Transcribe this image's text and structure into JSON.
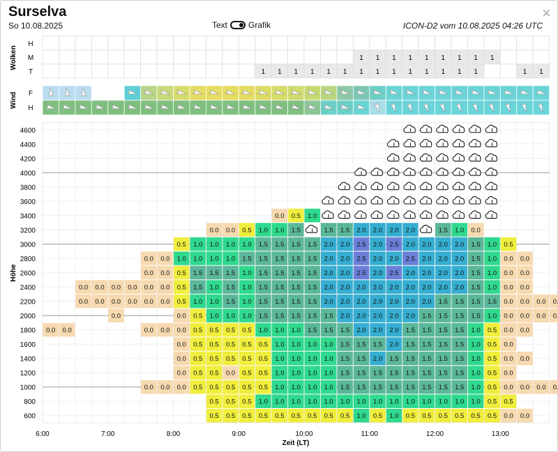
{
  "header": {
    "title": "Surselva",
    "date": "So 10.08.2025",
    "toggle_left": "Text",
    "toggle_right": "Grafik",
    "model": "ICON-D2 vom 10.08.2025 04:26 UTC",
    "close": "×"
  },
  "clouds": {
    "section_label": "Wolken",
    "rows": [
      "H",
      "M",
      "T"
    ],
    "M": [
      null,
      null,
      null,
      null,
      null,
      null,
      null,
      null,
      null,
      null,
      null,
      null,
      null,
      null,
      null,
      null,
      null,
      null,
      null,
      "1",
      "1",
      "1",
      "1",
      "1",
      "1",
      "1",
      "1",
      "1",
      null,
      null,
      null,
      "1"
    ],
    "T": [
      null,
      null,
      null,
      null,
      null,
      null,
      null,
      null,
      null,
      null,
      null,
      null,
      null,
      "1",
      "1",
      "1",
      "1",
      "1",
      "1",
      "1",
      "1",
      "1",
      "1",
      "1",
      "1",
      "1",
      "1",
      null,
      null,
      "1",
      "1",
      "1",
      "1",
      "2"
    ]
  },
  "wind": {
    "section_label": "Wind",
    "rows": [
      "F",
      "H"
    ],
    "F_colors": [
      "#b9dcef",
      "#b9dcef",
      "#b9dcef",
      "#ffffff",
      "#ffffff",
      "#5fcfd6",
      "#b8d588",
      "#c8d97a",
      "#d6dc6b",
      "#e2dc63",
      "#e6dc60",
      "#e6dc60",
      "#e4dc62",
      "#dcdc66",
      "#d5dc6a",
      "#cedb6e",
      "#c6da74",
      "#b9d780",
      "#8dc8a8",
      "#7cc7b4",
      "#6ccfc6",
      "#6ad4d4",
      "#6ad4d8",
      "#6ad4d8",
      "#6ad4d8",
      "#6ad4d8",
      "#6ad4d8",
      "#6ad4d8",
      "#6ad4d8",
      "#6ad4d8",
      "#6ad4d8",
      "#8fd8e4",
      "#a8dce9",
      "#a8dce9",
      "#a8dce9",
      "#a8dce9",
      "#a8dce9"
    ],
    "H_colors": [
      "#7fbf7f",
      "#7fbf7f",
      "#7fbf7f",
      "#7fbf7f",
      "#7fbf7f",
      "#7fbf7f",
      "#7fbf7f",
      "#7fbf7f",
      "#7fbf7f",
      "#7fbf7f",
      "#7fbf7f",
      "#7fbf7f",
      "#7fbf7f",
      "#7fbf7f",
      "#7fbf7f",
      "#7fbf7f",
      "#8cc697",
      "#6ccfc6",
      "#6ccfc6",
      "#6ad4d4",
      "#a8dce9",
      "#6ad4d8",
      "#6ad4d8",
      "#6ad4d8",
      "#6ad4d8",
      "#6ad4d8",
      "#6ad4d8",
      "#6ad4d8",
      "#6ad4d8",
      "#6ad4d8",
      "#6ad4d8",
      "#a8dce9",
      "#a8dce9",
      "#a8dce9",
      "#a8dce9",
      "#a8dce9",
      "#a8dce9"
    ]
  },
  "chart_data": {
    "type": "heatmap",
    "title": "Thermik",
    "ylabel": "Höhe",
    "xlabel": "Zeit (LT)",
    "y_ticks": [
      4600,
      4400,
      4200,
      4000,
      3800,
      3600,
      3400,
      3200,
      3000,
      2800,
      2600,
      2400,
      2200,
      2000,
      1800,
      1600,
      1400,
      1200,
      1000,
      800,
      600
    ],
    "x_ticks": [
      "6:00",
      "7:00",
      "8:00",
      "9:00",
      "10:00",
      "11:00",
      "12:00",
      "13:00",
      "14:00",
      "15:00",
      "16:00",
      "17:00",
      "18:00",
      "19:00",
      "20:00",
      "21:00"
    ],
    "x_start_hour": 6.0,
    "step_hours": 0.25,
    "rows": [
      {
        "alt": 4600,
        "cells": [
          "",
          "",
          "",
          "",
          "",
          "",
          "",
          "",
          "",
          "",
          "",
          "",
          "",
          "",
          "",
          "",
          "",
          "",
          "",
          "",
          "",
          "",
          "C",
          "C",
          "C",
          "C",
          "C",
          "C"
        ]
      },
      {
        "alt": 4400,
        "cells": [
          "",
          "",
          "",
          "",
          "",
          "",
          "",
          "",
          "",
          "",
          "",
          "",
          "",
          "",
          "",
          "",
          "",
          "",
          "",
          "",
          "",
          "C",
          "C",
          "C",
          "C",
          "C",
          "C",
          "C"
        ]
      },
      {
        "alt": 4200,
        "cells": [
          "",
          "",
          "",
          "",
          "",
          "",
          "",
          "",
          "",
          "",
          "",
          "",
          "",
          "",
          "",
          "",
          "",
          "",
          "",
          "",
          "",
          "C",
          "C",
          "C",
          "C",
          "C",
          "C",
          "C"
        ]
      },
      {
        "alt": 4000,
        "cells": [
          "",
          "",
          "",
          "",
          "",
          "",
          "",
          "",
          "",
          "",
          "",
          "",
          "",
          "",
          "",
          "",
          "",
          "",
          "",
          "C",
          "C",
          "C",
          "C",
          "C",
          "C",
          "C",
          "C",
          "C"
        ]
      },
      {
        "alt": 3800,
        "cells": [
          "",
          "",
          "",
          "",
          "",
          "",
          "",
          "",
          "",
          "",
          "",
          "",
          "",
          "",
          "",
          "",
          "",
          "",
          "C",
          "C",
          "C",
          "C",
          "C",
          "C",
          "C",
          "C",
          "C",
          "C"
        ]
      },
      {
        "alt": 3600,
        "cells": [
          "",
          "",
          "",
          "",
          "",
          "",
          "",
          "",
          "",
          "",
          "",
          "",
          "",
          "",
          "",
          "",
          "",
          "C",
          "C",
          "C",
          "C",
          "C",
          "C",
          "C",
          "C",
          "C",
          "C",
          "C"
        ]
      },
      {
        "alt": 3400,
        "cells": [
          "",
          "",
          "",
          "",
          "",
          "",
          "",
          "",
          "",
          "",
          "",
          "",
          "",
          "",
          "0.0",
          "0.5",
          "1.0",
          "C",
          "C",
          "C",
          "C",
          "C",
          "C",
          "C",
          "C",
          "C",
          "C",
          "C"
        ]
      },
      {
        "alt": 3200,
        "cells": [
          "",
          "",
          "",
          "",
          "",
          "",
          "",
          "",
          "",
          "",
          "0.0",
          "0.0",
          "0.5",
          "1.0",
          "1.0",
          "1.5",
          "C",
          "1.5",
          "1.5",
          "2.0",
          "2.0",
          "2.0",
          "2.0",
          "C",
          "1.5",
          "1.0",
          "0.0",
          ""
        ]
      },
      {
        "alt": 3000,
        "cells": [
          "",
          "",
          "",
          "",
          "",
          "",
          "",
          "",
          "0.5",
          "1.0",
          "1.0",
          "1.0",
          "1.0",
          "1.5",
          "1.5",
          "1.5",
          "1.5",
          "2.0",
          "2.0",
          "2.5",
          "2.0",
          "2.5",
          "2.0",
          "2.0",
          "2.0",
          "2.0",
          "1.5",
          "1.0",
          "0.5"
        ]
      },
      {
        "alt": 2800,
        "cells": [
          "",
          "",
          "",
          "",
          "",
          "",
          "0.0",
          "0.0",
          "1.0",
          "1.0",
          "1.0",
          "1.0",
          "1.5",
          "1.5",
          "1.5",
          "1.5",
          "1.5",
          "2.0",
          "2.0",
          "2.5",
          "2.0",
          "2.0",
          "2.5",
          "2.0",
          "2.0",
          "2.0",
          "1.5",
          "1.0",
          "0.0",
          "0.0"
        ]
      },
      {
        "alt": 2600,
        "cells": [
          "",
          "",
          "",
          "",
          "",
          "",
          "0.0",
          "0.0",
          "0.5",
          "1.5",
          "1.5",
          "1.5",
          "1.0",
          "1.5",
          "1.5",
          "1.5",
          "1.5",
          "2.0",
          "2.0",
          "2.5",
          "2.0",
          "2.5",
          "2.0",
          "2.0",
          "2.0",
          "2.0",
          "1.5",
          "1.0",
          "0.0",
          "0.0"
        ]
      },
      {
        "alt": 2400,
        "cells": [
          "",
          "",
          "0.0",
          "0.0",
          "0.0",
          "0.0",
          "0.0",
          "0.0",
          "0.5",
          "1.5",
          "1.0",
          "1.5",
          "1.0",
          "1.5",
          "1.5",
          "1.5",
          "1.5",
          "2.0",
          "2.0",
          "2.0",
          "2.0",
          "2.0",
          "2.0",
          "2.0",
          "2.0",
          "2.0",
          "1.5",
          "1.0",
          "0.0",
          "0.0",
          "",
          "",
          "",
          "",
          "",
          "",
          "0.0"
        ]
      },
      {
        "alt": 2200,
        "cells": [
          "",
          "",
          "0.0",
          "0.0",
          "0.0",
          "0.0",
          "0.0",
          "0.0",
          "0.5",
          "1.0",
          "1.0",
          "1.5",
          "1.0",
          "1.5",
          "1.5",
          "1.5",
          "1.5",
          "2.0",
          "2.0",
          "2.0",
          "2.0",
          "2.0",
          "2.0",
          "2.0",
          "1.5",
          "1.5",
          "1.5",
          "1.5",
          "0.0",
          "0.0",
          "0.0",
          "0.0"
        ]
      },
      {
        "alt": 2000,
        "cells": [
          "",
          "",
          "",
          "",
          "0.0",
          "",
          "",
          "",
          "0.0",
          "0.5",
          "1.0",
          "1.0",
          "1.0",
          "1.5",
          "1.5",
          "1.5",
          "1.5",
          "1.5",
          "2.0",
          "2.0",
          "2.0",
          "2.0",
          "2.0",
          "1.5",
          "1.5",
          "1.5",
          "1.5",
          "1.0",
          "0.0",
          "0.0",
          "0.0",
          "0.0"
        ]
      },
      {
        "alt": 1800,
        "cells": [
          "0.0",
          "0.0",
          "",
          "",
          "",
          "",
          "0.0",
          "0.0",
          "0.0",
          "0.5",
          "0.5",
          "0.5",
          "0.5",
          "1.0",
          "1.0",
          "1.0",
          "1.5",
          "1.5",
          "1.5",
          "2.0",
          "2.0",
          "2.0",
          "1.5",
          "1.5",
          "1.5",
          "1.5",
          "1.0",
          "0.5",
          "0.0",
          "0.0",
          "",
          "",
          "0.0",
          "0.0",
          "",
          "0.0",
          "0.0"
        ]
      },
      {
        "alt": 1600,
        "cells": [
          "",
          "",
          "",
          "",
          "",
          "",
          "",
          "",
          "0.0",
          "0.5",
          "0.5",
          "0.5",
          "0.5",
          "0.5",
          "1.0",
          "1.0",
          "1.0",
          "1.0",
          "1.5",
          "1.5",
          "1.5",
          "2.0",
          "1.5",
          "1.5",
          "1.5",
          "1.5",
          "1.0",
          "0.5",
          "0.0",
          "",
          "",
          "",
          "0.0"
        ]
      },
      {
        "alt": 1400,
        "cells": [
          "",
          "",
          "",
          "",
          "",
          "",
          "",
          "",
          "0.0",
          "0.5",
          "0.5",
          "0.5",
          "0.5",
          "0.5",
          "1.0",
          "1.0",
          "1.0",
          "1.0",
          "1.5",
          "1.5",
          "2.0",
          "1.5",
          "1.5",
          "1.5",
          "1.5",
          "1.5",
          "1.0",
          "0.5",
          "0.0",
          "0.0",
          "",
          "",
          "0.0",
          "0.0",
          "0.0",
          "0.0",
          "0.0"
        ]
      },
      {
        "alt": 1200,
        "cells": [
          "",
          "",
          "",
          "",
          "",
          "",
          "",
          "",
          "0.0",
          "0.5",
          "0.5",
          "0.0",
          "0.5",
          "0.5",
          "1.0",
          "1.0",
          "1.0",
          "1.0",
          "1.5",
          "1.5",
          "1.5",
          "1.5",
          "1.5",
          "1.5",
          "1.5",
          "1.5",
          "1.0",
          "0.5",
          "0.0",
          "",
          "",
          "",
          "0.0",
          "0.0",
          "0.0",
          "0.0",
          "0.0"
        ]
      },
      {
        "alt": 1000,
        "cells": [
          "",
          "",
          "",
          "",
          "",
          "",
          "0.0",
          "0.0",
          "0.0",
          "0.5",
          "0.5",
          "0.5",
          "0.5",
          "0.5",
          "1.0",
          "1.0",
          "1.0",
          "1.0",
          "1.5",
          "1.5",
          "1.5",
          "1.5",
          "1.5",
          "1.5",
          "1.5",
          "1.5",
          "1.0",
          "0.5",
          "0.0",
          "0.0",
          "0.0",
          "0.0",
          "0.0",
          "",
          "",
          "",
          "0.0"
        ]
      },
      {
        "alt": 800,
        "cells": [
          "",
          "",
          "",
          "",
          "",
          "",
          "",
          "",
          "",
          "",
          "0.5",
          "0.5",
          "0.5",
          "1.0",
          "1.0",
          "1.0",
          "1.0",
          "1.0",
          "1.0",
          "1.0",
          "1.0",
          "1.0",
          "1.0",
          "1.0",
          "1.0",
          "1.0",
          "1.0",
          "0.5",
          "0.5",
          "",
          "",
          "",
          "0.0",
          "",
          "",
          "",
          "0.0"
        ]
      },
      {
        "alt": 600,
        "cells": [
          "",
          "",
          "",
          "",
          "",
          "",
          "",
          "",
          "",
          "",
          "0.5",
          "0.5",
          "0.5",
          "0.5",
          "0.5",
          "0.5",
          "0.5",
          "0.5",
          "0.5",
          "1.0",
          "0.5",
          "1.0",
          "0.5",
          "0.5",
          "0.5",
          "0.5",
          "0.5",
          "0.5",
          "0.0",
          "0.0"
        ]
      }
    ]
  }
}
